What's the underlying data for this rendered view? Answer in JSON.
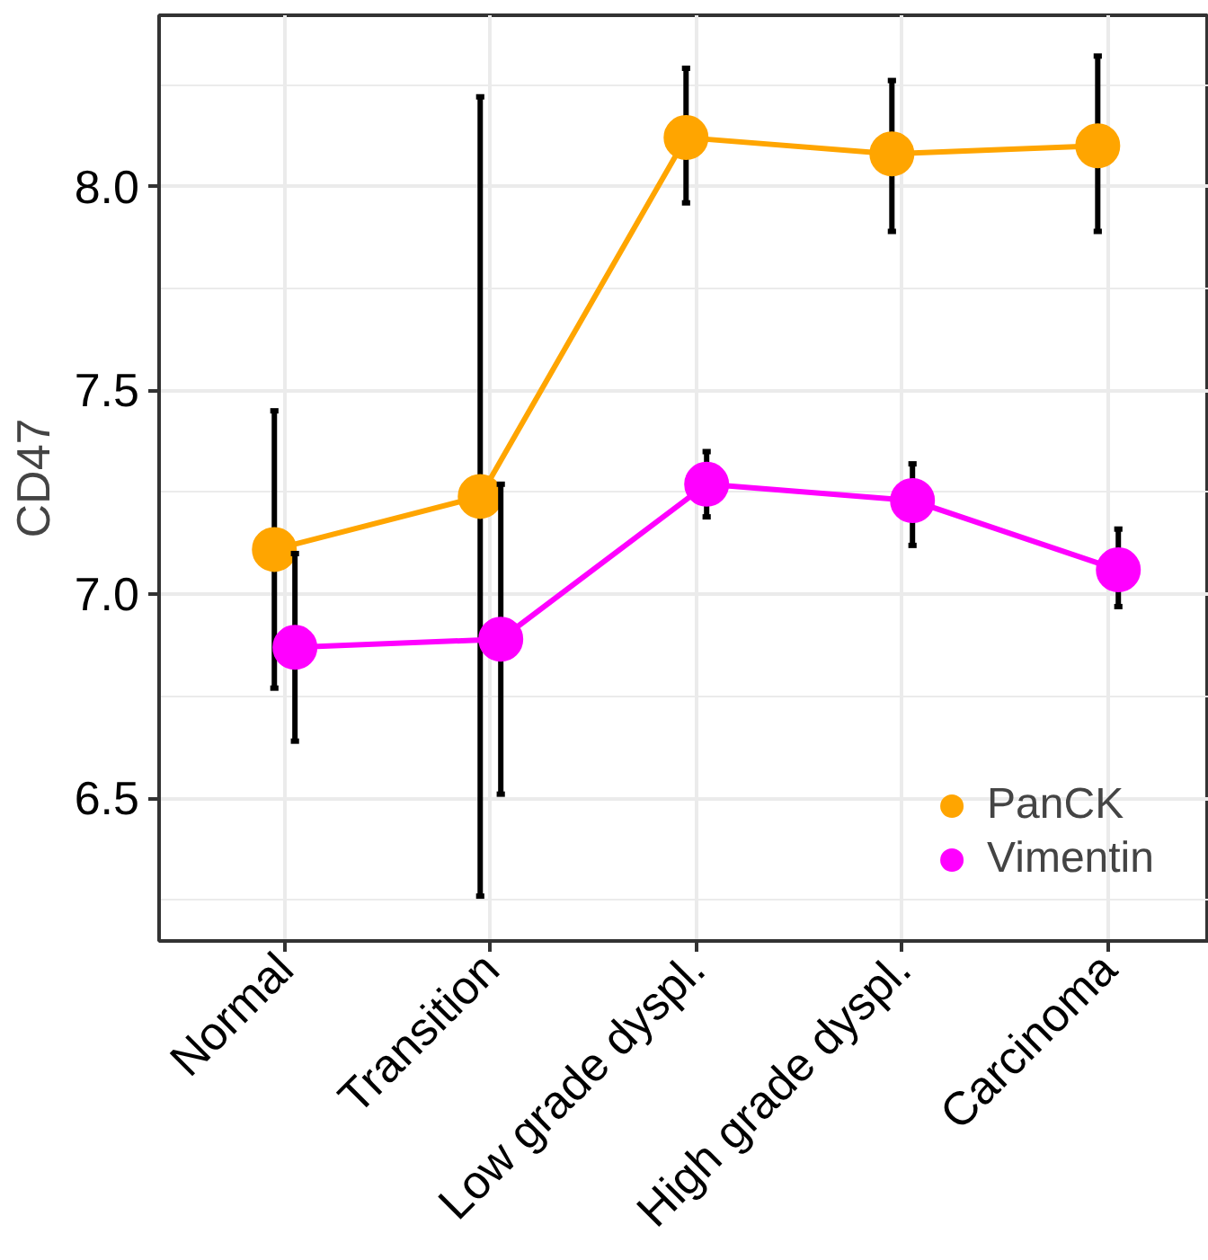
{
  "chart_data": {
    "type": "line",
    "ylabel": "CD47",
    "categories": [
      "Normal",
      "Transition",
      "Low grade dyspl.",
      "High grade dyspl.",
      "Carcinoma"
    ],
    "series": [
      {
        "name": "PanCK",
        "color": "#ffa500",
        "values": [
          7.11,
          7.24,
          8.12,
          8.08,
          8.1
        ],
        "errors": [
          [
            6.77,
            7.45
          ],
          [
            6.26,
            8.22
          ],
          [
            7.96,
            8.29
          ],
          [
            7.89,
            8.26
          ],
          [
            7.89,
            8.32
          ]
        ]
      },
      {
        "name": "Vimentin",
        "color": "#ff00ff",
        "values": [
          6.87,
          6.89,
          7.27,
          7.23,
          7.06
        ],
        "errors": [
          [
            6.64,
            7.1
          ],
          [
            6.51,
            7.27
          ],
          [
            7.19,
            7.35
          ],
          [
            7.12,
            7.32
          ],
          [
            6.97,
            7.16
          ]
        ]
      }
    ],
    "ylim": [
      6.15,
      8.42
    ],
    "yticks": [
      {
        "value": 6.5,
        "label": "6.5"
      },
      {
        "value": 7.0,
        "label": "7.0"
      },
      {
        "value": 7.5,
        "label": "7.5"
      },
      {
        "value": 8.0,
        "label": "8.0"
      }
    ],
    "grid": true,
    "legend": "bottom right",
    "marker": "circle",
    "line_style": "solid"
  }
}
